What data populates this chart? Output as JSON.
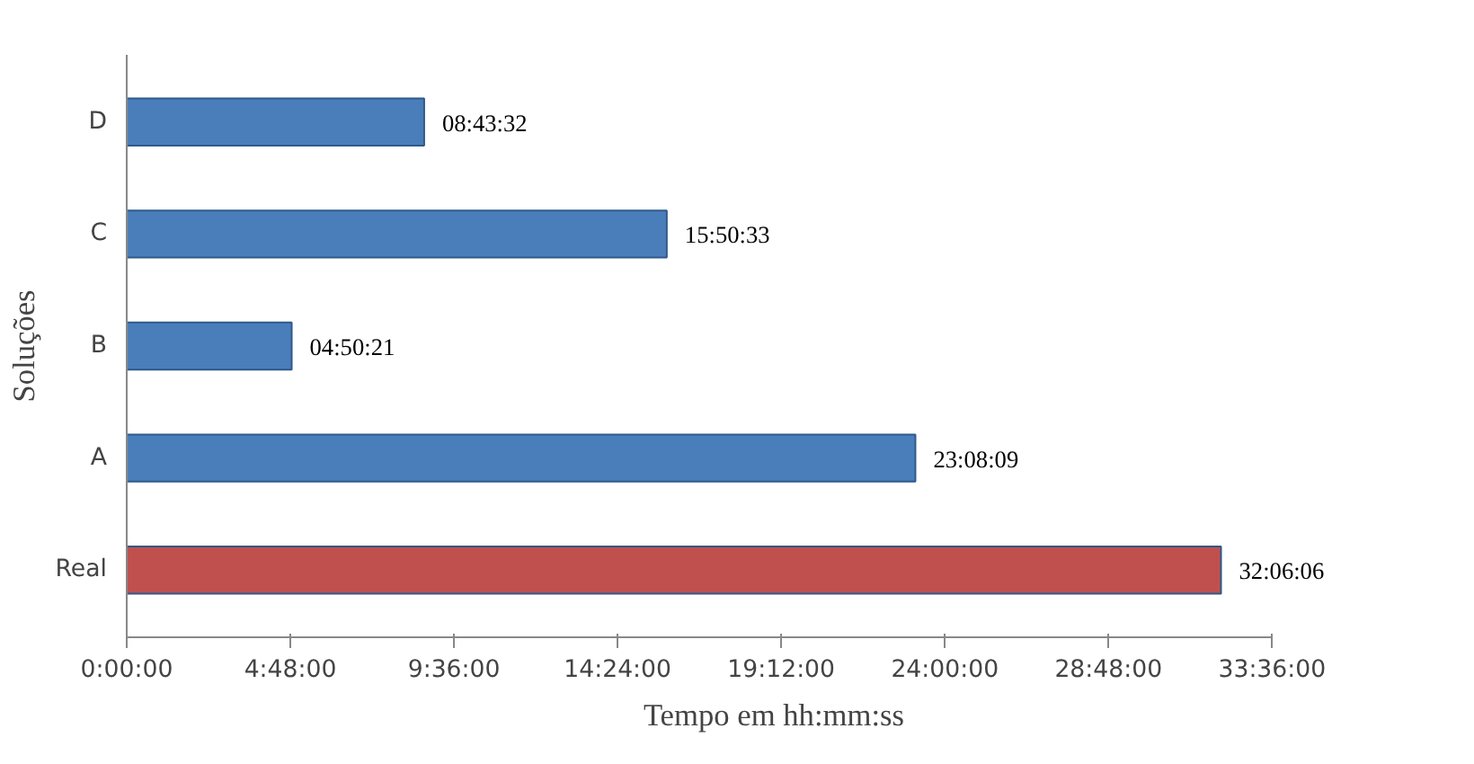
{
  "chart_data": {
    "type": "bar",
    "orientation": "horizontal",
    "categories": [
      "D",
      "C",
      "B",
      "A",
      "Real"
    ],
    "values": [
      8.7256,
      15.8425,
      4.8392,
      23.1358,
      32.1017
    ],
    "colors": [
      "#4a7ebb",
      "#4a7ebb",
      "#4a7ebb",
      "#4a7ebb",
      "#c0504d"
    ],
    "value_labels": [
      "08:43:32",
      "15:50:33",
      "04:50:21",
      "23:08:09",
      "32:06:06"
    ],
    "xlim": [
      0,
      33.6
    ],
    "xticks": [
      {
        "value": 0,
        "label": "0:00:00"
      },
      {
        "value": 4.8,
        "label": "4:48:00"
      },
      {
        "value": 9.6,
        "label": "9:36:00"
      },
      {
        "value": 14.4,
        "label": "14:24:00"
      },
      {
        "value": 19.2,
        "label": "19:12:00"
      },
      {
        "value": 24,
        "label": "24:00:00"
      },
      {
        "value": 28.8,
        "label": "28:48:00"
      },
      {
        "value": 33.6,
        "label": "33:36:00"
      }
    ],
    "xlabel": "Tempo em hh:mm:ss",
    "ylabel": "Soluções",
    "grid": false
  }
}
